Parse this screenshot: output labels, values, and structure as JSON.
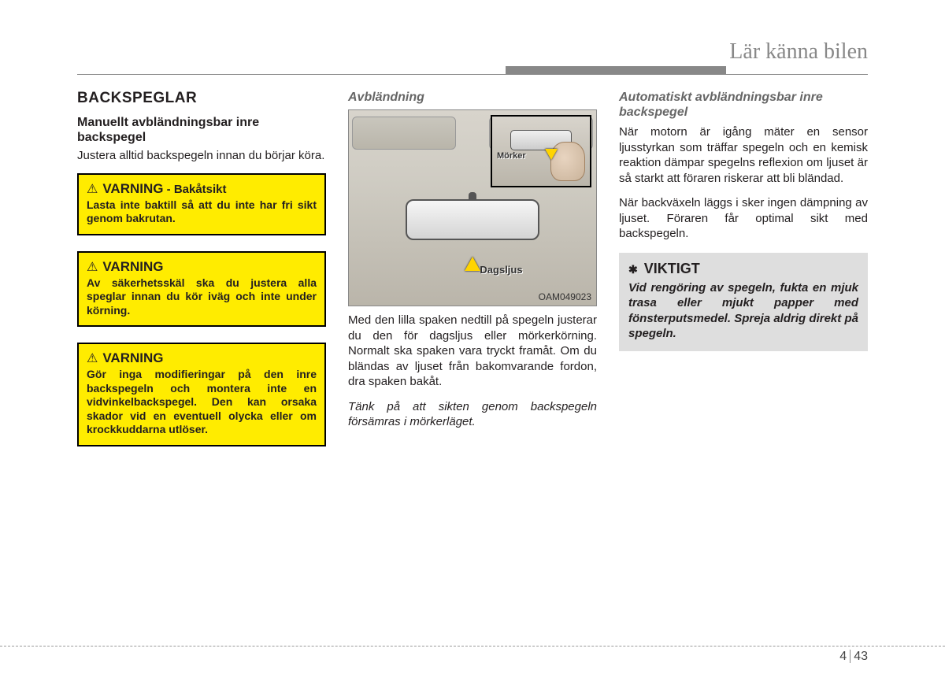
{
  "header": {
    "title": "Lär känna bilen"
  },
  "col1": {
    "section_title": "BACKSPEGLAR",
    "sub_heading": "Manuellt avbländningsbar inre backspegel",
    "intro": "Justera alltid backspegeln innan du börjar köra.",
    "warnings": [
      {
        "title": "VARNING",
        "subtitle": " - Bakåtsikt",
        "body": "Lasta inte baktill så att du inte har fri sikt genom bakrutan."
      },
      {
        "title": "VARNING",
        "subtitle": "",
        "body": "Av säkerhetsskäl ska du justera alla speglar innan du kör iväg och inte under körning."
      },
      {
        "title": "VARNING",
        "subtitle": "",
        "body": "Gör inga modifieringar på den inre backspegeln och montera inte en vidvinkelbackspegel. Den kan orsaka skador vid en eventuell olycka eller om krockkuddarna utlöser."
      }
    ]
  },
  "col2": {
    "heading": "Avbländning",
    "figure": {
      "day_label": "Dagsljus",
      "dark_label": "Mörker",
      "code": "OAM049023"
    },
    "para1": "Med den lilla spaken nedtill på spegeln justerar du den för dagsljus eller mörkerkörning. Normalt ska spaken vara tryckt framåt. Om du bländas av ljuset från bakomvarande fordon, dra spaken bakåt.",
    "para2": "Tänk på att sikten genom backspegeln försämras i mörkerläget."
  },
  "col3": {
    "heading": "Automatiskt avbländningsbar inre backspegel",
    "para1": "När motorn är igång mäter en sensor ljusstyrkan som träffar spegeln och en kemisk reaktion dämpar spegelns reflexion om ljuset är så starkt att föraren riskerar att bli bländad.",
    "para2": "När backväxeln läggs i sker ingen dämpning av ljuset. Föraren får optimal sikt med backspegeln.",
    "notice": {
      "title": "VIKTIGT",
      "body": "Vid rengöring av spegeln, fukta en mjuk trasa eller mjukt papper med fönsterputsmedel. Spreja aldrig direkt på spegeln."
    }
  },
  "footer": {
    "chapter": "4",
    "page": "43"
  }
}
